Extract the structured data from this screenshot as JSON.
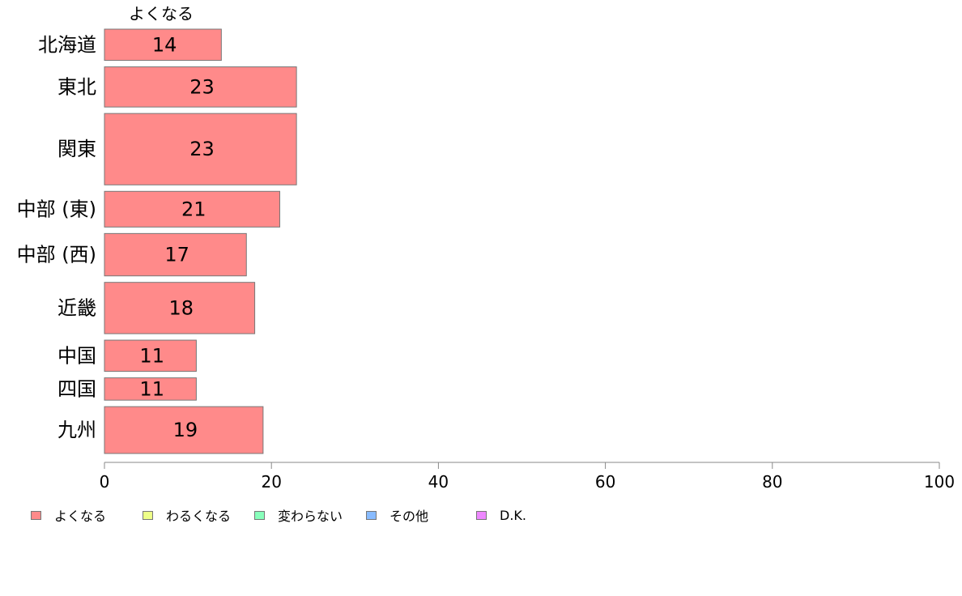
{
  "chart_data": {
    "type": "bar",
    "orientation": "horizontal",
    "stacked": true,
    "categories": [
      "北海道",
      "東北",
      "関東",
      "中部 (東)",
      "中部 (西)",
      "近畿",
      "中国",
      "四国",
      "九州"
    ],
    "category_weights": [
      0.7,
      0.9,
      1.6,
      0.8,
      0.95,
      1.15,
      0.7,
      0.5,
      1.05
    ],
    "series": [
      {
        "name": "よくなる",
        "color": "#ff8a8a",
        "values": [
          14,
          23,
          23,
          21,
          17,
          18,
          11,
          11,
          19
        ]
      }
    ],
    "series_top_label": "よくなる",
    "xlim": [
      0,
      100
    ],
    "xticks": [
      0,
      20,
      40,
      60,
      80,
      100
    ],
    "grid": false,
    "legend_position": "bottom-left",
    "legend": [
      {
        "label": "よくなる",
        "color": "#ff8a8a"
      },
      {
        "label": "わるくなる",
        "color": "#eeff88"
      },
      {
        "label": "変わらない",
        "color": "#88ffbb"
      },
      {
        "label": "その他",
        "color": "#88bbff"
      },
      {
        "label": "D.K.",
        "color": "#ee88ff"
      }
    ]
  }
}
